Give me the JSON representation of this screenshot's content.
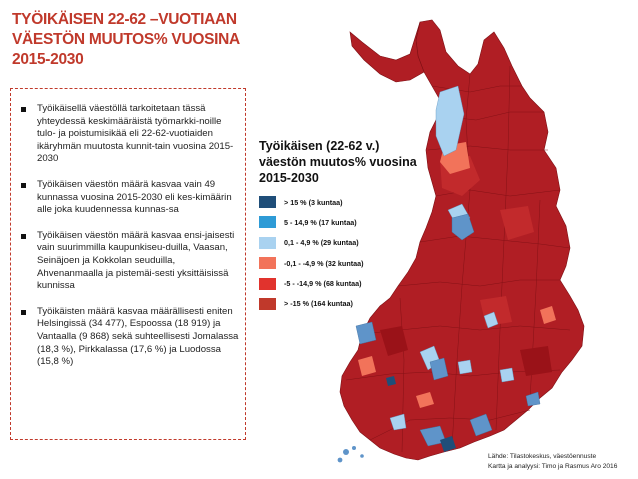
{
  "title": {
    "line1": "TYÖIKÄISEN 22-62 –VUOTIAAN",
    "line2": "VÄESTÖN MUUTOS% VUOSINA",
    "line3": "2015-2030"
  },
  "bullets": [
    "Työikäisellä väestöllä tarkoitetaan tässä yhteydessä keskimääräistä työmarkki-noille tulo- ja poistumisikää eli 22-62-vuotiaiden ikäryhmän muutosta kunnit-tain vuosina 2015-2030",
    "Työikäisen väestön määrä kasvaa vain 49 kunnassa vuosina 2015-2030 eli kes-kimäärin alle joka kuudennessa kunnas-sa",
    "Työikäisen väestön määrä kasvaa ensi-jaisesti vain suurimmilla kaupunkiseu-duilla, Vaasan, Seinäjoen ja Kokkolan seuduilla, Ahvenanmaalla ja pistemäi-sesti yksittäisissä kunnissa",
    "Työikäisten määrä kasvaa määrällisesti eniten Helsingissä (34 477), Espoossa (18 919) ja Vantaalla (9 868) sekä suhteellisesti Jomalassa (18,3 %), Pirkkalassa (17,6 %) ja Luodossa (15,8 %)"
  ],
  "legend": {
    "title_line1": "Työikäisen (22-62 v.)",
    "title_line2": "väestön muutos% vuosina",
    "title_line3": "2015-2030",
    "items": [
      {
        "label": "> 15  % (3 kuntaa)",
        "color": "#1f4e79"
      },
      {
        "label": "5 - 14,9 % (17 kuntaa)",
        "color": "#2e9bd6"
      },
      {
        "label": "0,1 - 4,9 % (29 kuntaa)",
        "color": "#a9d2f0"
      },
      {
        "label": "-0,1 - -4,9 % (32 kuntaa)",
        "color": "#f2735a"
      },
      {
        "label": "-5 - -14,9 % (68 kuntaa)",
        "color": "#e1332d"
      },
      {
        "label": "> -15  % (164 kuntaa)",
        "color": "#c0392b"
      }
    ]
  },
  "source": {
    "line1": "Lähde: Tilastokeskus, väestöennuste",
    "line2": "Kartta ja analyysi: Timo ja Rasmus Aro 2016"
  },
  "colors": {
    "title": "#c0392b",
    "map_main": "#b01e24",
    "map_dark": "#9a1218"
  }
}
